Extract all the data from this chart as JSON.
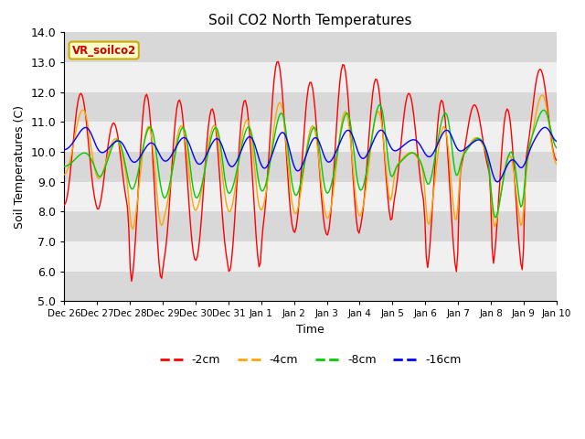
{
  "title": "Soil CO2 North Temperatures",
  "xlabel": "Time",
  "ylabel": "Soil Temperatures (C)",
  "ylim": [
    5.0,
    14.0
  ],
  "yticks": [
    5.0,
    6.0,
    7.0,
    8.0,
    9.0,
    10.0,
    11.0,
    12.0,
    13.0,
    14.0
  ],
  "xtick_labels": [
    "Dec 26",
    "Dec 27",
    "Dec 28",
    "Dec 29",
    "Dec 30",
    "Dec 31",
    "Jan 1",
    "Jan 2",
    "Jan 3",
    "Jan 4",
    "Jan 5",
    "Jan 6",
    "Jan 7",
    "Jan 8",
    "Jan 9",
    "Jan 10"
  ],
  "colors": {
    "-2cm": "#ff0000",
    "-4cm": "#ffa500",
    "-8cm": "#00cc00",
    "-16cm": "#0000ff"
  },
  "legend_label": "VR_soilco2",
  "legend_colors": {
    "text": "#cc0000",
    "background": "#ffffcc",
    "border": "#ccaa00"
  },
  "background_alternating": [
    "#d8d8d8",
    "#f0f0f0"
  ],
  "n_days": 15,
  "pts_per_day": 24
}
